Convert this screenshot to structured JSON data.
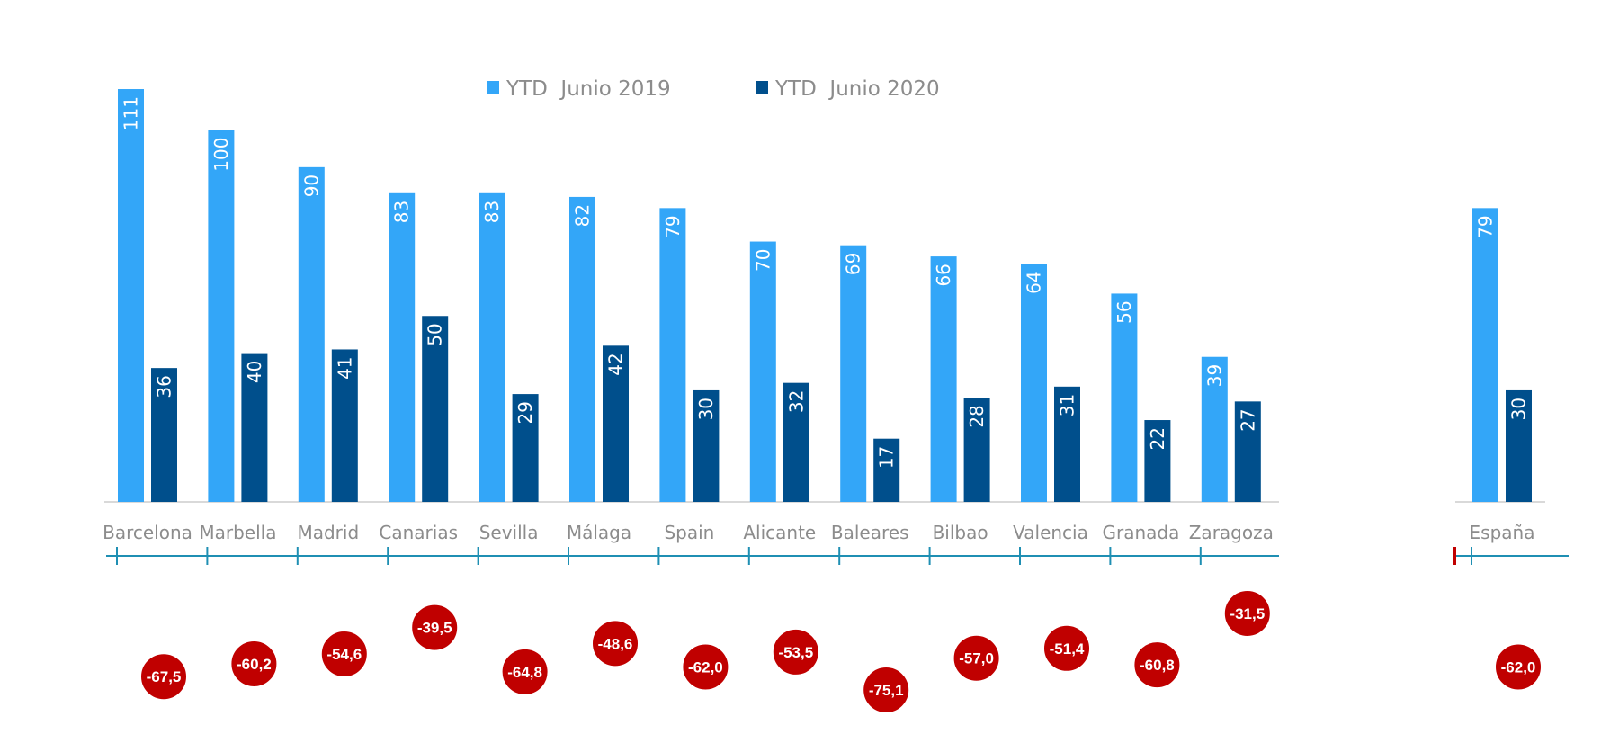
{
  "chart_data": {
    "type": "bar",
    "legend": {
      "placement": "top-center"
    },
    "colors": {
      "ytd_2019": "#33a6f8",
      "ytd_2020": "#004f8c",
      "axis": "#d9d9d9",
      "timeline": "#1f8fb3",
      "bubble": "#c00000",
      "category_text": "#8c8c8c"
    },
    "series": [
      {
        "name": "YTD  Junio 2019",
        "color": "#33a6f8"
      },
      {
        "name": "YTD  Junio 2020",
        "color": "#004f8c"
      }
    ],
    "panels": [
      {
        "categories": [
          "Barcelona",
          "Marbella",
          "Madrid",
          "Canarias",
          "Sevilla",
          "Málaga",
          "Spain",
          "Alicante",
          "Baleares",
          "Bilbao",
          "Valencia",
          "Granada",
          "Zaragoza"
        ],
        "ytd_2019": [
          111,
          100,
          90,
          83,
          83,
          82,
          79,
          70,
          69,
          66,
          64,
          56,
          39
        ],
        "ytd_2020": [
          36,
          40,
          41,
          50,
          29,
          42,
          30,
          32,
          17,
          28,
          31,
          22,
          27
        ],
        "ytd_2019_labels": [
          "111",
          "100",
          "90",
          "83",
          "83",
          "82",
          "79",
          "70",
          "69",
          "66",
          "64",
          "56",
          "39"
        ],
        "ytd_2020_labels": [
          "36",
          "40",
          "41",
          "50",
          "29",
          "42",
          "30",
          "32",
          "17",
          "28",
          "31",
          "22",
          "27"
        ],
        "change_pct": [
          -67.5,
          -60.2,
          -54.6,
          -39.5,
          -64.8,
          -48.6,
          -62.0,
          -53.5,
          -75.1,
          -57.0,
          -51.4,
          -60.8,
          -31.5
        ],
        "change_labels": [
          "-67,5",
          "-60,2",
          "-54,6",
          "-39,5",
          "-64,8",
          "-48,6",
          "-62,0",
          "-53,5",
          "-75,1",
          "-57,0",
          "-51,4",
          "-60,8",
          "-31,5"
        ]
      },
      {
        "categories": [
          "España"
        ],
        "ytd_2019": [
          79
        ],
        "ytd_2020": [
          30
        ],
        "ytd_2019_labels": [
          "79"
        ],
        "ytd_2020_labels": [
          "30"
        ],
        "change_pct": [
          -62.0
        ],
        "change_labels": [
          "-62,0"
        ]
      }
    ],
    "ylim": [
      0,
      115
    ]
  }
}
